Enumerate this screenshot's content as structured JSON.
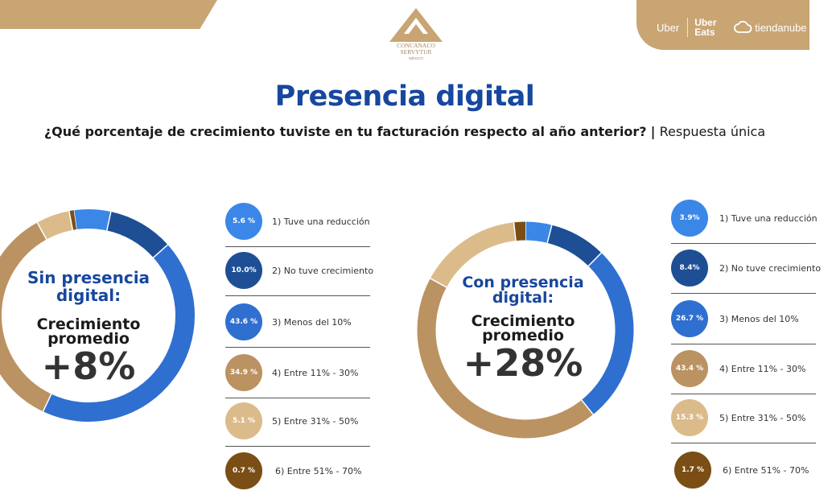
{
  "header": {
    "org_name": "CONCANACO SERVYTUR",
    "org_sub": "MÉXICO",
    "sponsors": {
      "uber": "Uber",
      "uber_eats": "Uber Eats",
      "tiendanube": "tiendanube"
    }
  },
  "title": "Presencia digital",
  "subtitle": {
    "question": "¿Qué porcentaje de crecimiento tuviste en tu facturación respecto al año anterior?",
    "separator": "|",
    "note": "Respuesta única"
  },
  "colors": {
    "title_blue": "#17479e",
    "gold": "#c9a574",
    "s1": "#3a87e8",
    "s2": "#1e4f95",
    "s3": "#2f6fd0",
    "s4": "#bb9262",
    "s5": "#dcbb8b",
    "s6": "#7a4e14"
  },
  "chart_data": [
    {
      "type": "pie",
      "title": "",
      "center": {
        "label_lines": [
          "Sin presencia",
          "digital:"
        ],
        "growth_lines": [
          "Crecimiento",
          "promedio"
        ],
        "value": "+8%"
      },
      "categories": [
        "1) Tuve una reducción",
        "2) No tuve crecimiento",
        "3) Menos del 10%",
        "4) Entre 11% - 30%",
        "5) Entre 31% - 50%",
        "6) Entre 51% - 70%"
      ],
      "values": [
        5.6,
        10.0,
        43.6,
        34.9,
        5.1,
        0.7
      ],
      "value_labels": [
        "5.6 %",
        "10.0%",
        "43.6 %",
        "34.9 %",
        "5.1 %",
        "0.7 %"
      ]
    },
    {
      "type": "pie",
      "title": "",
      "center": {
        "label_lines": [
          "Con presencia",
          "digital:"
        ],
        "growth_lines": [
          "Crecimiento",
          "promedio"
        ],
        "value": "+28%"
      },
      "categories": [
        "1) Tuve una reducción",
        "2) No tuve crecimiento",
        "3) Menos del 10%",
        "4) Entre 11% - 30%",
        "5) Entre 31% - 50%",
        "6) Entre 51% - 70%"
      ],
      "values": [
        3.9,
        8.4,
        26.7,
        43.4,
        15.3,
        1.7
      ],
      "value_labels": [
        "3.9%",
        "8.4%",
        "26.7 %",
        "43.4 %",
        "15.3 %",
        "1.7 %"
      ]
    }
  ]
}
